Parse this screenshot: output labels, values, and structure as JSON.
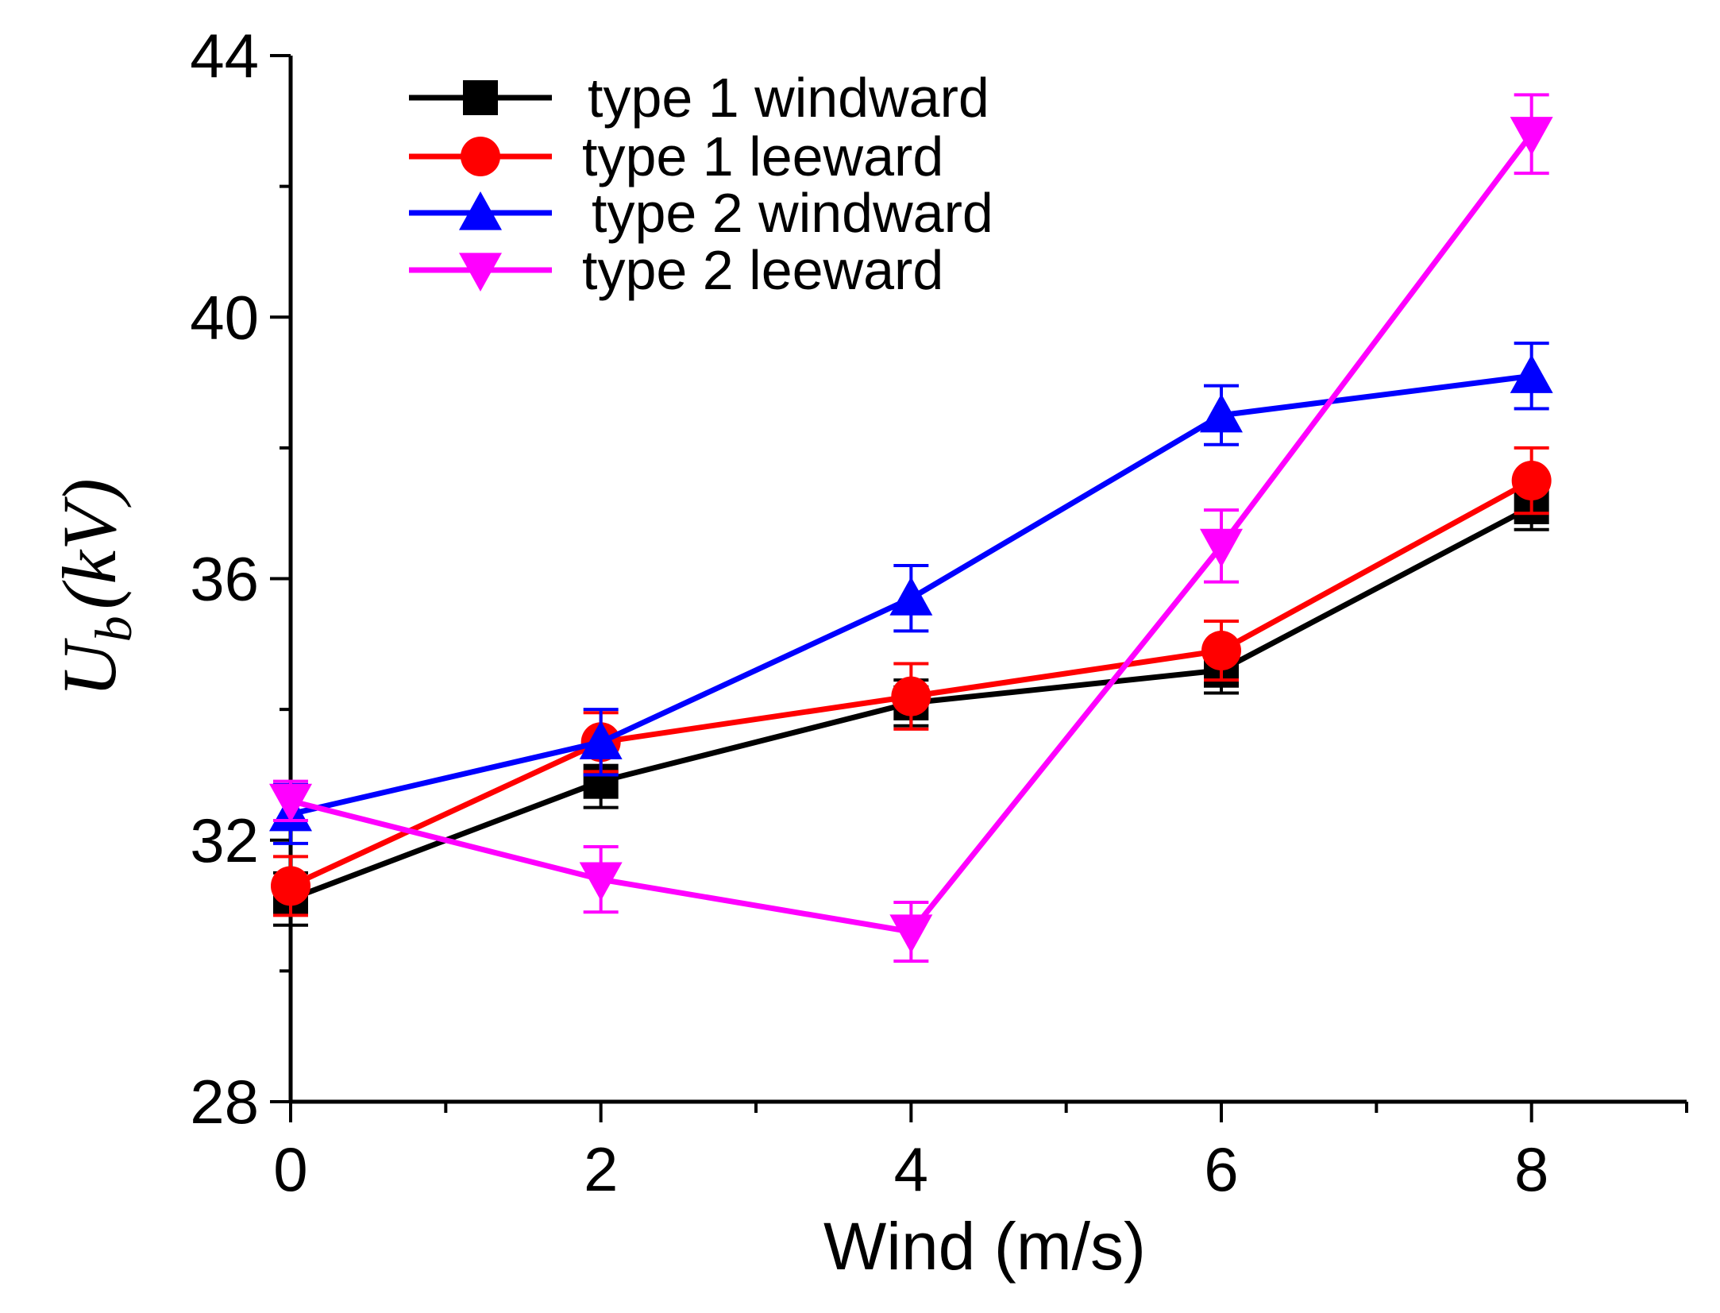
{
  "chart_data": {
    "type": "line",
    "title": "",
    "xlabel": "Wind (m/s)",
    "ylabel": {
      "main": "U",
      "sub": "b",
      "unit": "(kV)"
    },
    "x": [
      0,
      2,
      4,
      6,
      8
    ],
    "xlim": [
      0,
      9
    ],
    "ylim": [
      28,
      44
    ],
    "xticks": [
      "0",
      "2",
      "4",
      "6",
      "8"
    ],
    "yticks": [
      "28",
      "32",
      "36",
      "40",
      "44"
    ],
    "grid": false,
    "legend_position": "top-left",
    "series": [
      {
        "name": "type 1 windward",
        "color": "#000000",
        "marker": "square",
        "values": [
          31.1,
          32.9,
          34.1,
          34.6,
          37.1
        ],
        "errors": [
          0.4,
          0.4,
          0.35,
          0.35,
          0.35
        ]
      },
      {
        "name": "type 1 leeward",
        "color": "#ff0000",
        "marker": "circle",
        "values": [
          31.3,
          33.5,
          34.2,
          34.9,
          37.5
        ],
        "errors": [
          0.45,
          0.45,
          0.5,
          0.45,
          0.5
        ]
      },
      {
        "name": "type 2 windward",
        "color": "#0000ff",
        "marker": "triangle-up",
        "values": [
          32.4,
          33.5,
          35.7,
          38.5,
          39.1
        ],
        "errors": [
          0.45,
          0.5,
          0.5,
          0.45,
          0.5
        ]
      },
      {
        "name": "type 2 leeward",
        "color": "#ff00ff",
        "marker": "triangle-down",
        "values": [
          32.6,
          31.4,
          30.6,
          36.5,
          42.8
        ],
        "errors": [
          0.3,
          0.5,
          0.45,
          0.55,
          0.6
        ]
      }
    ]
  }
}
